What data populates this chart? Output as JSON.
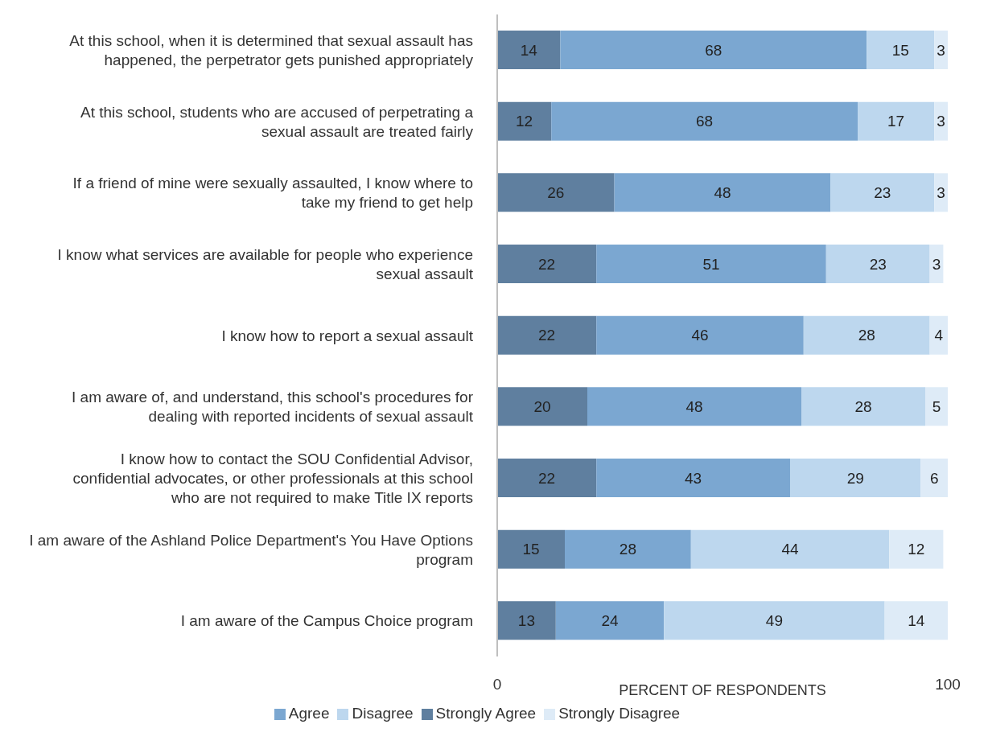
{
  "chart_data": {
    "type": "bar",
    "orientation": "horizontal",
    "stacked": true,
    "xlabel": "PERCENT OF RESPONDENTS",
    "xlim": [
      0,
      100
    ],
    "xticks": [
      0,
      100
    ],
    "grid": false,
    "legend": "bottom",
    "categories": [
      "At this school, when it is determined that sexual assault has happened, the perpetrator gets punished appropriately",
      "At this school, students who are accused of perpetrating a sexual assault are treated fairly",
      "If a friend of mine were sexually assaulted, I know where to take my friend to get help",
      "I know what services are available for people who experience sexual assault",
      "I know how to report a sexual assault",
      "I am aware of, and understand, this school's procedures for dealing with reported incidents of sexual assault",
      "I know how to contact the SOU Confidential Advisor, confidential advocates, or other professionals at this school who are not required to make Title IX reports",
      "I am aware of the Ashland Police Department's You Have Options program",
      "I am aware of the Campus Choice program"
    ],
    "series": [
      {
        "name": "Strongly Agree",
        "color": "#5f7f9f",
        "values": [
          14,
          12,
          26,
          22,
          22,
          20,
          22,
          15,
          13
        ],
        "value_labels": [
          "14",
          "12",
          "26",
          "22",
          "22",
          "20",
          "22",
          "15",
          "13"
        ]
      },
      {
        "name": "Agree",
        "color": "#7ba7d1",
        "values": [
          68,
          68,
          48,
          51,
          46,
          47.5,
          43,
          28,
          24
        ],
        "value_labels": [
          "68",
          "68",
          "48",
          "51",
          "46",
          "48",
          "43",
          "28",
          "24"
        ]
      },
      {
        "name": "Disagree",
        "color": "#bdd7ee",
        "values": [
          15,
          17,
          23,
          23,
          28,
          27.5,
          29,
          44,
          49
        ],
        "value_labels": [
          "15",
          "17",
          "23",
          "23",
          "28",
          "28",
          "29",
          "44",
          "49"
        ]
      },
      {
        "name": "Strongly Disagree",
        "color": "#deebf7",
        "values": [
          3,
          3,
          3,
          3,
          4,
          5,
          6,
          12,
          14
        ],
        "value_labels": [
          "3",
          "3",
          "3",
          "3",
          "4",
          "5",
          "6",
          "12",
          "14"
        ]
      }
    ]
  }
}
